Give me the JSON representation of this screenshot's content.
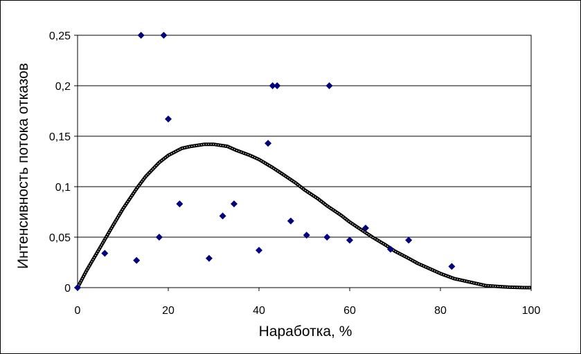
{
  "chart_data": {
    "type": "scatter",
    "xlabel": "Наработка, %",
    "ylabel": "Интенсивность потока отказов",
    "xlim": [
      0,
      100
    ],
    "ylim": [
      0,
      0.25
    ],
    "x_ticks": [
      "0",
      "20",
      "40",
      "60",
      "80",
      "100"
    ],
    "y_ticks": [
      "0",
      "0,05",
      "0,1",
      "0,15",
      "0,2",
      "0,25"
    ],
    "grid": "horizontal",
    "legend": "none",
    "series": [
      {
        "kind": "points",
        "marker": "diamond",
        "color": "#000080",
        "x": [
          0,
          6,
          13,
          14,
          18,
          19,
          20,
          22.5,
          29,
          32,
          34.5,
          40,
          42,
          43,
          44,
          47,
          50.5,
          55,
          55.5,
          60,
          63.5,
          69,
          73,
          82.5
        ],
        "y": [
          0,
          0.034,
          0.027,
          0.25,
          0.05,
          0.25,
          0.167,
          0.083,
          0.029,
          0.071,
          0.083,
          0.037,
          0.143,
          0.2,
          0.2,
          0.066,
          0.052,
          0.05,
          0.2,
          0.047,
          0.059,
          0.038,
          0.047,
          0.021
        ]
      },
      {
        "kind": "curve",
        "color": "#000000",
        "x": [
          0,
          2,
          5,
          8,
          10,
          13,
          15,
          18,
          20,
          23,
          25,
          28,
          30,
          33,
          35,
          38,
          40,
          43,
          45,
          48,
          50,
          53,
          55,
          58,
          60,
          63,
          65,
          68,
          70,
          73,
          75,
          78,
          80,
          83,
          85,
          88,
          90,
          93,
          95,
          98,
          100
        ],
        "y": [
          0,
          0.017,
          0.04,
          0.063,
          0.078,
          0.098,
          0.11,
          0.124,
          0.131,
          0.138,
          0.14,
          0.142,
          0.142,
          0.14,
          0.136,
          0.131,
          0.127,
          0.119,
          0.113,
          0.104,
          0.097,
          0.088,
          0.081,
          0.072,
          0.065,
          0.056,
          0.05,
          0.042,
          0.036,
          0.029,
          0.024,
          0.018,
          0.014,
          0.009,
          0.007,
          0.004,
          0.002,
          0.001,
          0.0005,
          0.0001,
          0
        ]
      }
    ]
  }
}
